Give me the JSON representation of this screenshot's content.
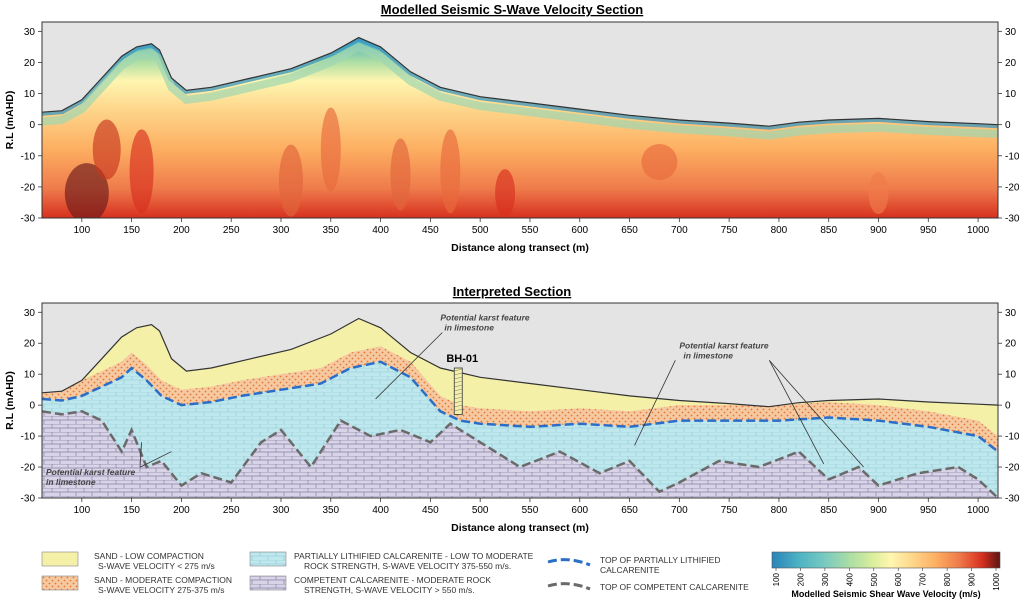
{
  "chart_data": [
    {
      "type": "heatmap",
      "title": "Modelled Seismic S-Wave Velocity Section",
      "xlabel": "Distance along transect (m)",
      "ylabel": "R.L (mAHD)",
      "xlim": [
        60,
        1020
      ],
      "ylim": [
        -30,
        33
      ],
      "xticks": [
        100,
        150,
        200,
        250,
        300,
        350,
        400,
        450,
        500,
        550,
        600,
        650,
        700,
        750,
        800,
        850,
        900,
        950,
        1000
      ],
      "yticks": [
        -30,
        -20,
        -10,
        0,
        10,
        20,
        30
      ],
      "surface_profile": {
        "x": [
          60,
          80,
          100,
          120,
          140,
          155,
          170,
          178,
          190,
          205,
          230,
          270,
          310,
          350,
          378,
          400,
          430,
          460,
          500,
          550,
          600,
          650,
          700,
          750,
          790,
          820,
          850,
          900,
          950,
          1000,
          1020
        ],
        "y": [
          4,
          4.5,
          8,
          15,
          22,
          25,
          26,
          24,
          15,
          11,
          12,
          15,
          18,
          23,
          28,
          25,
          17,
          12,
          9,
          7,
          5,
          3,
          1.5,
          0.5,
          -0.5,
          0.8,
          1.5,
          2,
          1,
          0.3,
          0
        ]
      }
    },
    {
      "type": "area",
      "title": "Interpreted Section",
      "xlabel": "Distance along transect (m)",
      "ylabel": "R.L (mAHD)",
      "xlim": [
        60,
        1020
      ],
      "ylim": [
        -30,
        33
      ],
      "xticks": [
        100,
        150,
        200,
        250,
        300,
        350,
        400,
        450,
        500,
        550,
        600,
        650,
        700,
        750,
        800,
        850,
        900,
        950,
        1000
      ],
      "yticks": [
        -30,
        -20,
        -10,
        0,
        10,
        20,
        30
      ],
      "surface_profile": {
        "x": [
          60,
          80,
          100,
          120,
          140,
          155,
          170,
          178,
          190,
          205,
          230,
          270,
          310,
          350,
          378,
          400,
          430,
          460,
          500,
          550,
          600,
          650,
          700,
          750,
          790,
          820,
          850,
          900,
          950,
          1000,
          1020
        ],
        "y": [
          4,
          4.5,
          8,
          15,
          22,
          25,
          26,
          24,
          15,
          11,
          12,
          15,
          18,
          23,
          28,
          25,
          17,
          12,
          9,
          7,
          5,
          3,
          1.5,
          0.5,
          -0.5,
          0.8,
          1.5,
          2,
          1,
          0.3,
          0
        ]
      },
      "top_partially_lithified": {
        "x": [
          60,
          80,
          100,
          120,
          140,
          150,
          165,
          180,
          200,
          230,
          260,
          300,
          340,
          370,
          400,
          430,
          460,
          480,
          500,
          550,
          600,
          650,
          700,
          750,
          800,
          850,
          900,
          950,
          1000,
          1020
        ],
        "y": [
          2,
          1.5,
          3,
          6,
          9,
          12,
          8,
          3,
          0,
          1,
          3,
          5,
          7,
          12,
          14,
          9,
          -2,
          -5,
          -6,
          -7,
          -6,
          -7,
          -5,
          -5,
          -5,
          -4,
          -5,
          -7,
          -10,
          -15
        ]
      },
      "top_competent": {
        "x": [
          60,
          80,
          100,
          120,
          140,
          150,
          165,
          180,
          200,
          220,
          250,
          280,
          300,
          330,
          360,
          390,
          420,
          450,
          470,
          500,
          540,
          580,
          620,
          650,
          680,
          700,
          740,
          780,
          820,
          850,
          880,
          900,
          940,
          980,
          1000,
          1020
        ],
        "y": [
          -2,
          -3,
          -2,
          -5,
          -15,
          -8,
          -20,
          -18,
          -26,
          -22,
          -25,
          -12,
          -8,
          -20,
          -5,
          -10,
          -8,
          -12,
          -6,
          -12,
          -20,
          -15,
          -22,
          -18,
          -28,
          -25,
          -18,
          -20,
          -15,
          -24,
          -20,
          -26,
          -22,
          -20,
          -24,
          -30
        ]
      },
      "annotations": [
        {
          "text": "Potential karst feature",
          "text2": "in limestone",
          "target": "top-center",
          "x": 460,
          "y": 28
        },
        {
          "text": "Potential karst feature",
          "text2": "in limestone",
          "target": "right",
          "x": 700,
          "y": 19
        },
        {
          "text": "Potential karst feature",
          "text2": "in limestone",
          "target": "left",
          "x": 40,
          "y": -22
        }
      ],
      "borehole": {
        "label": "BH-01",
        "x": 478,
        "top": 12,
        "bottom": -3
      }
    }
  ],
  "legend": {
    "items": [
      {
        "id": "sand-low",
        "line1": "SAND - LOW COMPACTION",
        "line2": "S-WAVE VELOCITY < 275 m/s",
        "color": "#f4f0a8"
      },
      {
        "id": "sand-mod",
        "line1": "SAND - MODERATE COMPACTION",
        "line2": "S-WAVE VELOCITY 275-375 m/s",
        "color": "#f6c9a0"
      },
      {
        "id": "partial",
        "line1": "PARTIALLY LITHIFIED CALCARENITE - LOW TO MODERATE",
        "line2": "ROCK STRENGTH, S-WAVE VELOCITY 375-550 m/s.",
        "color": "#bfe7ee"
      },
      {
        "id": "competent",
        "line1": "COMPETENT CALCARENITE - MODERATE ROCK",
        "line2": "STRENGTH, S-WAVE VELOCITY > 550 m/s.",
        "color": "#d8d3e6"
      },
      {
        "id": "top-partial",
        "line1": "TOP OF PARTIALLY LITHIFIED",
        "line2": "CALCARENITE",
        "color": "#2a6ec7"
      },
      {
        "id": "top-competent",
        "line1": "TOP OF COMPETENT CALCARENITE",
        "line2": "",
        "color": "#6a6a6a"
      }
    ]
  },
  "colorbar": {
    "title": "Modelled Seismic Shear Wave Velocity (m/s)",
    "ticks": [
      "100",
      "200",
      "300",
      "400",
      "500",
      "600",
      "700",
      "800",
      "900",
      "1000"
    ],
    "colors": [
      "#2b83ba",
      "#4eb3c4",
      "#7ccbbe",
      "#abdda4",
      "#d8ee9b",
      "#fff6b0",
      "#fdd58a",
      "#fdae61",
      "#ef7b4c",
      "#d7301f",
      "#8a1c1c",
      "#5a1414"
    ]
  }
}
